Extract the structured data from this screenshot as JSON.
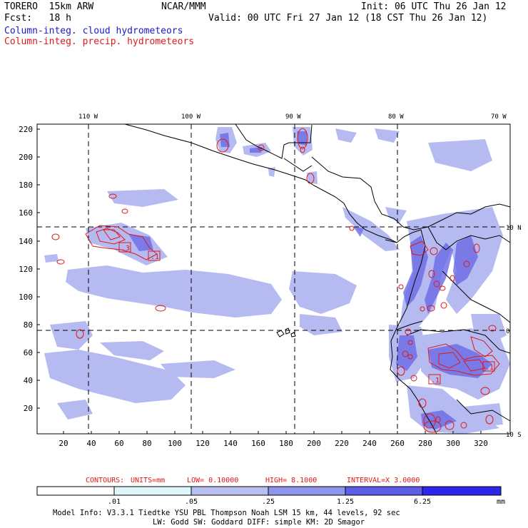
{
  "header": {
    "model": "TORERO  15km ARW",
    "org": "NCAR/MMM",
    "init": "Init: 06 UTC Thu 26 Jan 12",
    "fcst": "Fcst:   18 h",
    "valid": "Valid: 00 UTC Fri 27 Jan 12 (18 CST Thu 26 Jan 12)",
    "field1": "Column-integ. cloud hydrometeors",
    "field2": "Column-integ. precip. hydrometeors"
  },
  "axes": {
    "lon_labels": [
      "110 W",
      "100 W",
      "90 W",
      "80 W",
      "70 W"
    ],
    "lat_labels": [
      "10 N",
      "0",
      "10 S"
    ],
    "y_ticks": [
      "220",
      "200",
      "180",
      "160",
      "140",
      "120",
      "100",
      "80",
      "60",
      "40",
      "20"
    ],
    "x_ticks": [
      "20",
      "40",
      "60",
      "80",
      "100",
      "120",
      "140",
      "160",
      "180",
      "200",
      "220",
      "240",
      "260",
      "280",
      "300",
      "320"
    ]
  },
  "contour_info": {
    "contours": "CONTOURS:",
    "units": "UNITS=mm",
    "low": "LOW= 0.10000",
    "high": "HIGH=  8.1000",
    "interval": "INTERVAL=X  3.0000"
  },
  "colorbar": {
    "labels": [
      ".01",
      ".05",
      ".25",
      "1.25",
      "6.25"
    ],
    "unit": "mm",
    "colors": [
      "#ffffff",
      "#dff6fb",
      "#b7c0ef",
      "#9399ea",
      "#6b6be6",
      "#4a45ea",
      "#2f26ee"
    ]
  },
  "contour_labels": [
    ".3",
    ".1",
    ".1",
    ".1",
    ".1"
  ],
  "footer": {
    "line1": "Model Info: V3.3.1   Tiedtke YSU PBL  Thompson    Noah LSM  15 km,   44 levels,   92 sec",
    "line2": "LW: Godd SW: Goddard DIFF: simple KM: 2D Smagor"
  },
  "colors": {
    "cloud_field": "#8c94ee",
    "precip_contour": "#e01818",
    "coast": "#000000"
  }
}
